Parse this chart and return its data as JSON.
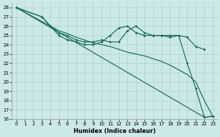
{
  "xlabel": "Humidex (Indice chaleur)",
  "xlim": [
    -0.5,
    23.5
  ],
  "ylim": [
    16,
    28.5
  ],
  "yticks": [
    16,
    17,
    18,
    19,
    20,
    21,
    22,
    23,
    24,
    25,
    26,
    27,
    28
  ],
  "xticks": [
    0,
    1,
    2,
    3,
    4,
    5,
    6,
    7,
    8,
    9,
    10,
    11,
    12,
    13,
    14,
    15,
    16,
    17,
    18,
    19,
    20,
    21,
    22,
    23
  ],
  "bg_color": "#cce8e8",
  "grid_color": "#aad0d0",
  "line_color": "#1a6b5a",
  "line1_markers": {
    "x": [
      0,
      3,
      4,
      5,
      6,
      7,
      8,
      9,
      10,
      11,
      12,
      13,
      14,
      15,
      16,
      17,
      18,
      19,
      20,
      21,
      22
    ],
    "y": [
      28,
      27.0,
      26.0,
      25.3,
      25.0,
      24.5,
      24.3,
      24.3,
      24.5,
      24.3,
      24.3,
      25.5,
      26.0,
      25.3,
      25.0,
      25.0,
      25.0,
      25.0,
      24.8,
      23.8,
      23.5
    ]
  },
  "line2_markers": {
    "x": [
      0,
      3,
      4,
      5,
      6,
      7,
      8,
      9,
      10,
      11,
      12,
      13,
      14,
      15,
      16,
      17,
      18,
      19,
      20,
      21,
      22,
      23
    ],
    "y": [
      28,
      27.0,
      26.0,
      25.0,
      24.5,
      24.3,
      24.0,
      24.0,
      24.3,
      25.0,
      25.8,
      26.0,
      25.3,
      25.0,
      25.0,
      25.0,
      24.8,
      25.0,
      22.0,
      19.3,
      16.2,
      16.3
    ]
  },
  "line3_nomarker": {
    "x": [
      0,
      4,
      5,
      6,
      7,
      8,
      9,
      10,
      11,
      12,
      13,
      14,
      15,
      16,
      17,
      18,
      19,
      20,
      21,
      22,
      23
    ],
    "y": [
      28,
      26.0,
      25.5,
      25.2,
      24.8,
      24.5,
      24.2,
      24.0,
      23.8,
      23.5,
      23.2,
      23.0,
      22.8,
      22.5,
      22.2,
      21.8,
      21.3,
      20.8,
      20.0,
      18.0,
      16.3
    ]
  },
  "line4_diagonal": {
    "x": [
      0,
      22,
      23
    ],
    "y": [
      28,
      16.2,
      16.3
    ]
  }
}
